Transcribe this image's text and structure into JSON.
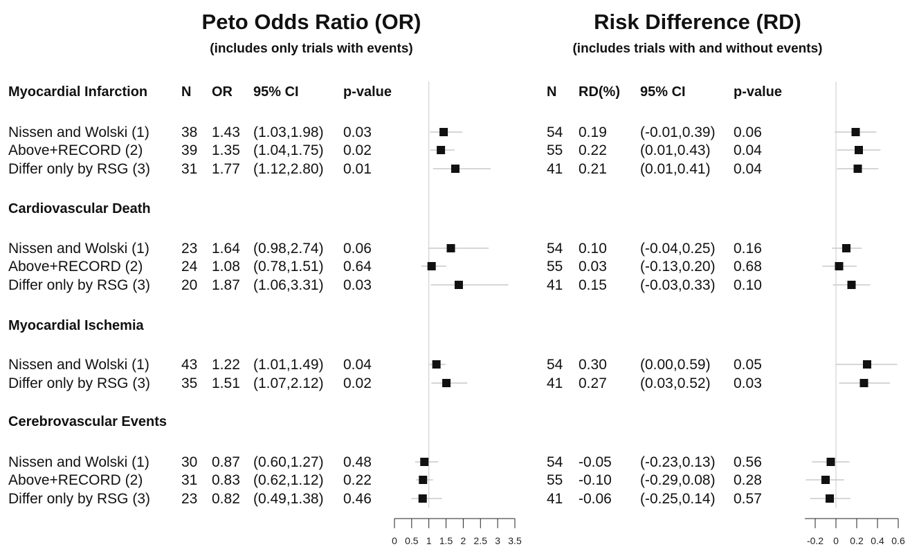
{
  "chart_data": {
    "type": "forest",
    "panels": [
      {
        "key": "or",
        "title": "Peto Odds Ratio (OR)",
        "subtitle": "(includes only trials with events)",
        "columns": [
          "N",
          "OR",
          "95% CI",
          "p-value"
        ],
        "reference": 1,
        "xlim": [
          0,
          3.5
        ],
        "ticks": [
          0,
          0.5,
          1,
          1.5,
          2,
          2.5,
          3,
          3.5
        ],
        "tick_labels": [
          "0",
          "0.5",
          "1",
          "1.5",
          "2",
          "2.5",
          "3",
          "3.5"
        ]
      },
      {
        "key": "rd",
        "title": "Risk Difference (RD)",
        "subtitle": "(includes trials with and without events)",
        "columns": [
          "N",
          "RD(%)",
          "95% CI",
          "p-value"
        ],
        "reference": 0,
        "xlim": [
          -0.3,
          0.6
        ],
        "ticks": [
          -0.2,
          0,
          0.2,
          0.4,
          0.6
        ],
        "tick_labels": [
          "-0.2",
          "0",
          "0.2",
          "0.4",
          "0.6"
        ]
      }
    ],
    "groups": [
      {
        "name": "Myocardial Infarction",
        "rows": [
          {
            "study": "Nissen and Wolski (1)",
            "or": {
              "n": "38",
              "est": 1.43,
              "lo": 1.03,
              "hi": 1.98,
              "est_text": "1.43",
              "ci": "(1.03,1.98)",
              "p": "0.03"
            },
            "rd": {
              "n": "54",
              "est": 0.19,
              "lo": -0.01,
              "hi": 0.39,
              "est_text": "0.19",
              "ci": "(-0.01,0.39)",
              "p": "0.06"
            }
          },
          {
            "study": "Above+RECORD (2)",
            "or": {
              "n": "39",
              "est": 1.35,
              "lo": 1.04,
              "hi": 1.75,
              "est_text": "1.35",
              "ci": "(1.04,1.75)",
              "p": "0.02"
            },
            "rd": {
              "n": "55",
              "est": 0.22,
              "lo": 0.01,
              "hi": 0.43,
              "est_text": "0.22",
              "ci": "(0.01,0.43)",
              "p": "0.04"
            }
          },
          {
            "study": "Differ only by RSG (3)",
            "or": {
              "n": "31",
              "est": 1.77,
              "lo": 1.12,
              "hi": 2.8,
              "est_text": "1.77",
              "ci": "(1.12,2.80)",
              "p": "0.01"
            },
            "rd": {
              "n": "41",
              "est": 0.21,
              "lo": 0.01,
              "hi": 0.41,
              "est_text": "0.21",
              "ci": "(0.01,0.41)",
              "p": "0.04"
            }
          }
        ]
      },
      {
        "name": "Cardiovascular Death",
        "rows": [
          {
            "study": "Nissen and Wolski (1)",
            "or": {
              "n": "23",
              "est": 1.64,
              "lo": 0.98,
              "hi": 2.74,
              "est_text": "1.64",
              "ci": "(0.98,2.74)",
              "p": "0.06"
            },
            "rd": {
              "n": "54",
              "est": 0.1,
              "lo": -0.04,
              "hi": 0.25,
              "est_text": "0.10",
              "ci": "(-0.04,0.25)",
              "p": "0.16"
            }
          },
          {
            "study": "Above+RECORD (2)",
            "or": {
              "n": "24",
              "est": 1.08,
              "lo": 0.78,
              "hi": 1.51,
              "est_text": "1.08",
              "ci": "(0.78,1.51)",
              "p": "0.64"
            },
            "rd": {
              "n": "55",
              "est": 0.03,
              "lo": -0.13,
              "hi": 0.2,
              "est_text": "0.03",
              "ci": "(-0.13,0.20)",
              "p": "0.68"
            }
          },
          {
            "study": "Differ only by RSG (3)",
            "or": {
              "n": "20",
              "est": 1.87,
              "lo": 1.06,
              "hi": 3.31,
              "est_text": "1.87",
              "ci": "(1.06,3.31)",
              "p": "0.03"
            },
            "rd": {
              "n": "41",
              "est": 0.15,
              "lo": -0.03,
              "hi": 0.33,
              "est_text": "0.15",
              "ci": "(-0.03,0.33)",
              "p": "0.10"
            }
          }
        ]
      },
      {
        "name": "Myocardial Ischemia",
        "rows": [
          {
            "study": "Nissen and Wolski (1)",
            "or": {
              "n": "43",
              "est": 1.22,
              "lo": 1.01,
              "hi": 1.49,
              "est_text": "1.22",
              "ci": "(1.01,1.49)",
              "p": "0.04"
            },
            "rd": {
              "n": "54",
              "est": 0.3,
              "lo": 0.0,
              "hi": 0.59,
              "est_text": "0.30",
              "ci": "(0.00,0.59)",
              "p": "0.05"
            }
          },
          {
            "study": "Differ only by RSG (3)",
            "or": {
              "n": "35",
              "est": 1.51,
              "lo": 1.07,
              "hi": 2.12,
              "est_text": "1.51",
              "ci": "(1.07,2.12)",
              "p": "0.02"
            },
            "rd": {
              "n": "41",
              "est": 0.27,
              "lo": 0.03,
              "hi": 0.52,
              "est_text": "0.27",
              "ci": "(0.03,0.52)",
              "p": "0.03"
            }
          }
        ]
      },
      {
        "name": "Cerebrovascular Events",
        "rows": [
          {
            "study": "Nissen and Wolski (1)",
            "or": {
              "n": "30",
              "est": 0.87,
              "lo": 0.6,
              "hi": 1.27,
              "est_text": "0.87",
              "ci": "(0.60,1.27)",
              "p": "0.48"
            },
            "rd": {
              "n": "54",
              "est": -0.05,
              "lo": -0.23,
              "hi": 0.13,
              "est_text": "-0.05",
              "ci": "(-0.23,0.13)",
              "p": "0.56"
            }
          },
          {
            "study": "Above+RECORD (2)",
            "or": {
              "n": "31",
              "est": 0.83,
              "lo": 0.62,
              "hi": 1.12,
              "est_text": "0.83",
              "ci": "(0.62,1.12)",
              "p": "0.22"
            },
            "rd": {
              "n": "55",
              "est": -0.1,
              "lo": -0.29,
              "hi": 0.08,
              "est_text": "-0.10",
              "ci": "(-0.29,0.08)",
              "p": "0.28"
            }
          },
          {
            "study": "Differ only by RSG (3)",
            "or": {
              "n": "23",
              "est": 0.82,
              "lo": 0.49,
              "hi": 1.38,
              "est_text": "0.82",
              "ci": "(0.49,1.38)",
              "p": "0.46"
            },
            "rd": {
              "n": "41",
              "est": -0.06,
              "lo": -0.25,
              "hi": 0.14,
              "est_text": "-0.06",
              "ci": "(-0.25,0.14)",
              "p": "0.57"
            }
          }
        ]
      }
    ],
    "colors": {
      "marker": "#111111",
      "ci_line": "#c8c8c8",
      "reference_line": "#c8c8c8",
      "axis": "#222222"
    }
  }
}
